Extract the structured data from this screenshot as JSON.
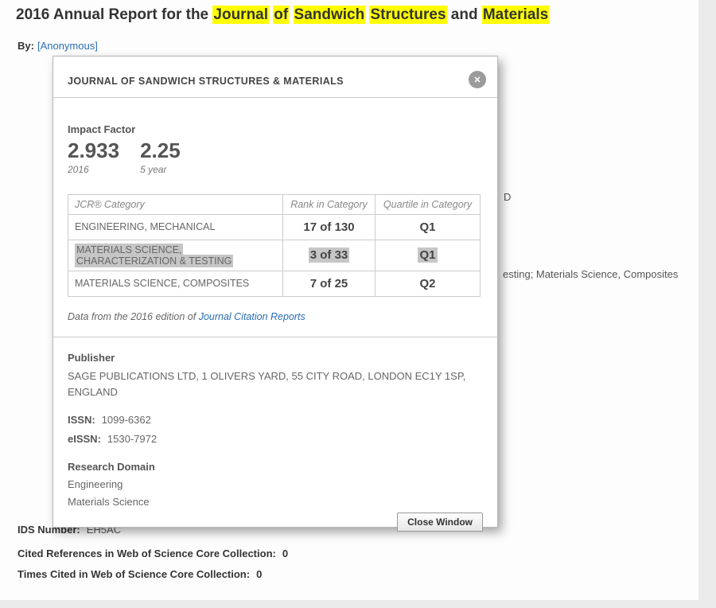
{
  "page": {
    "title_parts": [
      {
        "t": "2016 Annual Report for the ",
        "hl": false
      },
      {
        "t": "Journal",
        "hl": true
      },
      {
        "t": " ",
        "hl": false
      },
      {
        "t": "of",
        "hl": true
      },
      {
        "t": " ",
        "hl": false
      },
      {
        "t": "Sandwich",
        "hl": true
      },
      {
        "t": " ",
        "hl": false
      },
      {
        "t": "Structures",
        "hl": true
      },
      {
        "t": " and ",
        "hl": false
      },
      {
        "t": "Materials",
        "hl": true
      }
    ],
    "byline": {
      "label": "By:",
      "link": "[Anonymous]"
    }
  },
  "background": {
    "fragment_right_1": "D",
    "fragment_right_2": "esting; Materials Science, Composites",
    "ids": {
      "label": "IDS Number:",
      "value": "EH5AC"
    },
    "cited_refs": {
      "label": "Cited References in Web of Science Core Collection:",
      "value": "0"
    },
    "times_cited": {
      "label": "Times Cited in Web of Science Core Collection:",
      "value": "0"
    }
  },
  "modal": {
    "title": "JOURNAL OF SANDWICH STRUCTURES & MATERIALS",
    "close_glyph": "✕",
    "impact": {
      "label": "Impact Factor",
      "values": [
        {
          "value": "2.933",
          "caption": "2016"
        },
        {
          "value": "2.25",
          "caption": "5 year"
        }
      ]
    },
    "table": {
      "headers": [
        "JCR® Category",
        "Rank in Category",
        "Quartile in Category"
      ],
      "rows": [
        {
          "category": "ENGINEERING, MECHANICAL",
          "rank": "17 of 130",
          "quartile": "Q1",
          "highlighted": false
        },
        {
          "category": "MATERIALS SCIENCE, CHARACTERIZATION & TESTING",
          "rank": "3 of 33",
          "quartile": "Q1",
          "highlighted": true
        },
        {
          "category": "MATERIALS SCIENCE, COMPOSITES",
          "rank": "7 of 25",
          "quartile": "Q2",
          "highlighted": false
        }
      ]
    },
    "source_note": {
      "prefix": "Data from the 2016 edition of ",
      "link": "Journal Citation Reports"
    },
    "publisher": {
      "label": "Publisher",
      "value": "SAGE PUBLICATIONS LTD, 1 OLIVERS YARD, 55 CITY ROAD, LONDON EC1Y 1SP, ENGLAND"
    },
    "issn": {
      "label": "ISSN:",
      "value": "1099-6362"
    },
    "eissn": {
      "label": "eISSN:",
      "value": "1530-7972"
    },
    "research_domain": {
      "label": "Research Domain",
      "items": [
        "Engineering",
        "Materials Science"
      ]
    },
    "close_button": "Close Window"
  },
  "colors": {
    "highlight_yellow": "#ffff00",
    "selection_gray": "#c6c6c6",
    "link_blue": "#2a6db5",
    "modal_bg": "#ffffff",
    "page_bg": "#ebebeb"
  }
}
